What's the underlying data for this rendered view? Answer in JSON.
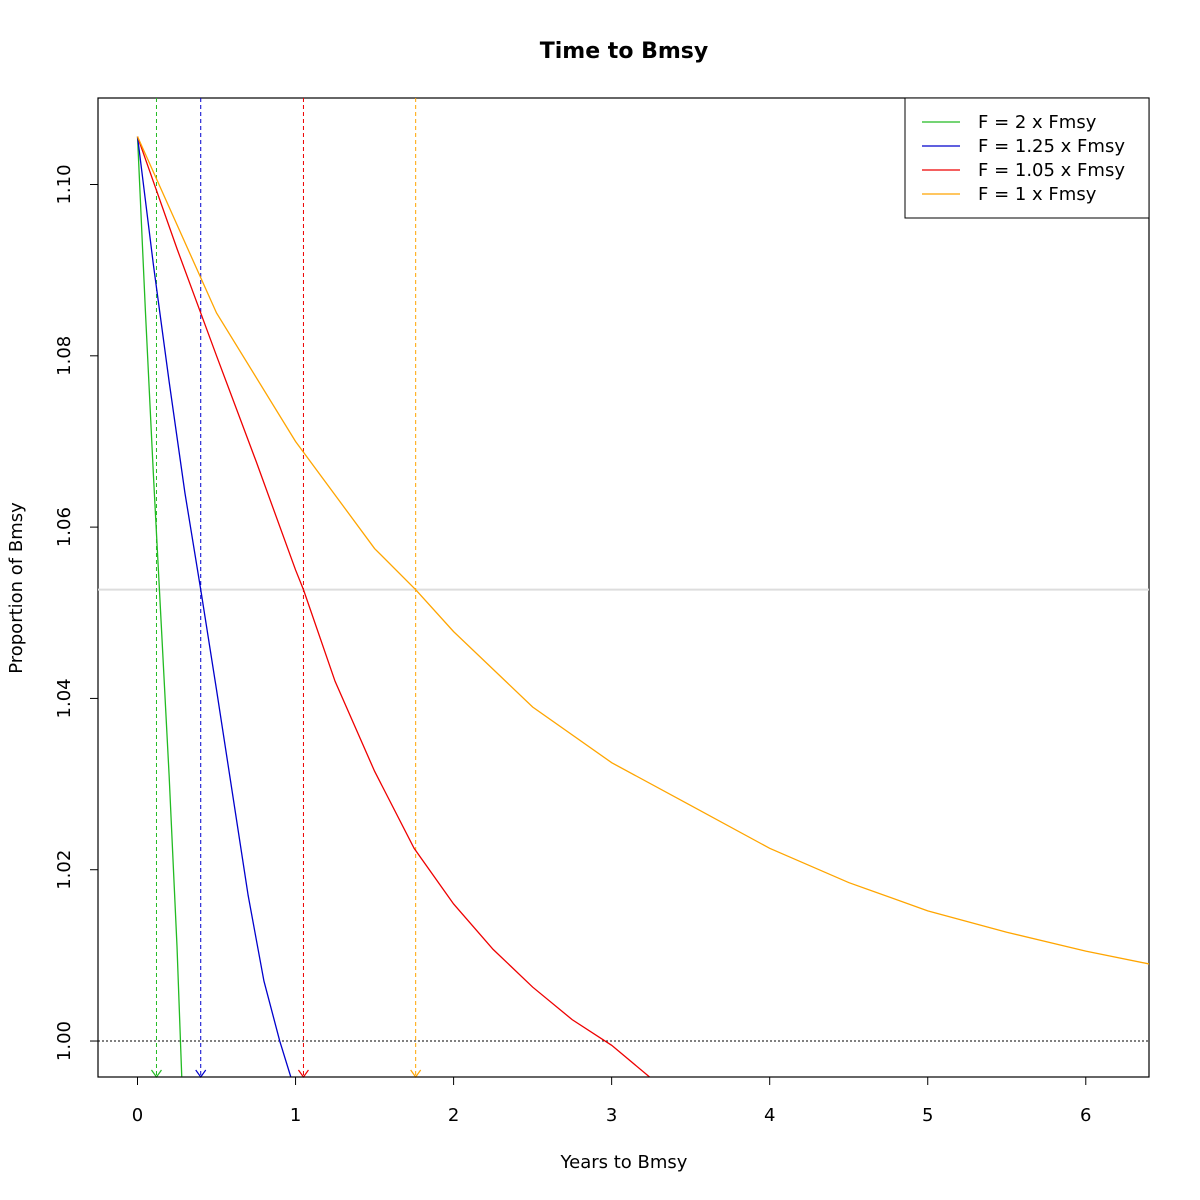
{
  "chart_data": {
    "type": "line",
    "title": "Time to Bmsy",
    "xlabel": "Years to Bmsy",
    "ylabel": "Proportion of Bmsy",
    "xlim": [
      -0.25,
      6.4
    ],
    "ylim": [
      0.9958,
      1.1101
    ],
    "x_ticks": [
      0,
      1,
      2,
      3,
      4,
      5,
      6
    ],
    "x_tick_labels": [
      "0",
      "1",
      "2",
      "3",
      "4",
      "5",
      "6"
    ],
    "y_ticks": [
      1.0,
      1.02,
      1.04,
      1.06,
      1.08,
      1.1
    ],
    "y_tick_labels": [
      "1.00",
      "1.02",
      "1.04",
      "1.06",
      "1.08",
      "1.10"
    ],
    "grid": false,
    "legend_position": "top-right",
    "reference_lines": {
      "horizontal_dotted": 1.0,
      "horizontal_gray": 1.0527
    },
    "series": [
      {
        "name": "F = 2 x Fmsy",
        "color": "#22bb22",
        "x": [
          0,
          0.05,
          0.1,
          0.15,
          0.2,
          0.25,
          0.28
        ],
        "y": [
          1.1056,
          1.0852,
          1.0663,
          1.0487,
          1.031,
          1.011,
          0.9958
        ],
        "time_to_target": 0.12
      },
      {
        "name": "F = 1.25 x Fmsy",
        "color": "#0000cc",
        "x": [
          0,
          0.1,
          0.2,
          0.3,
          0.4,
          0.5,
          0.6,
          0.7,
          0.8,
          0.9,
          0.97
        ],
        "y": [
          1.1056,
          1.0907,
          1.077,
          1.064,
          1.0527,
          1.041,
          1.029,
          1.017,
          1.007,
          1.0,
          0.9958
        ],
        "time_to_target": 0.4
      },
      {
        "name": "F = 1.05 x Fmsy",
        "color": "#ee0000",
        "x": [
          0,
          0.25,
          0.5,
          0.75,
          1.0,
          1.05,
          1.25,
          1.5,
          1.75,
          2.0,
          2.25,
          2.5,
          2.75,
          3.0,
          3.24
        ],
        "y": [
          1.1056,
          1.0925,
          1.08,
          1.0677,
          1.055,
          1.0527,
          1.042,
          1.0315,
          1.0225,
          1.016,
          1.0107,
          1.0063,
          1.0025,
          0.9995,
          0.9958
        ],
        "time_to_target": 1.05
      },
      {
        "name": "F = 1 x Fmsy",
        "color": "#ffa500",
        "x": [
          0,
          0.5,
          1.0,
          1.5,
          1.76,
          2.0,
          2.5,
          3.0,
          3.5,
          4.0,
          4.5,
          5.0,
          5.5,
          6.0,
          6.4
        ],
        "y": [
          1.1056,
          1.085,
          1.07,
          1.0575,
          1.0527,
          1.0478,
          1.039,
          1.0325,
          1.0275,
          1.0225,
          1.0185,
          1.0152,
          1.0127,
          1.0105,
          1.009
        ],
        "time_to_target": 1.76
      }
    ]
  }
}
